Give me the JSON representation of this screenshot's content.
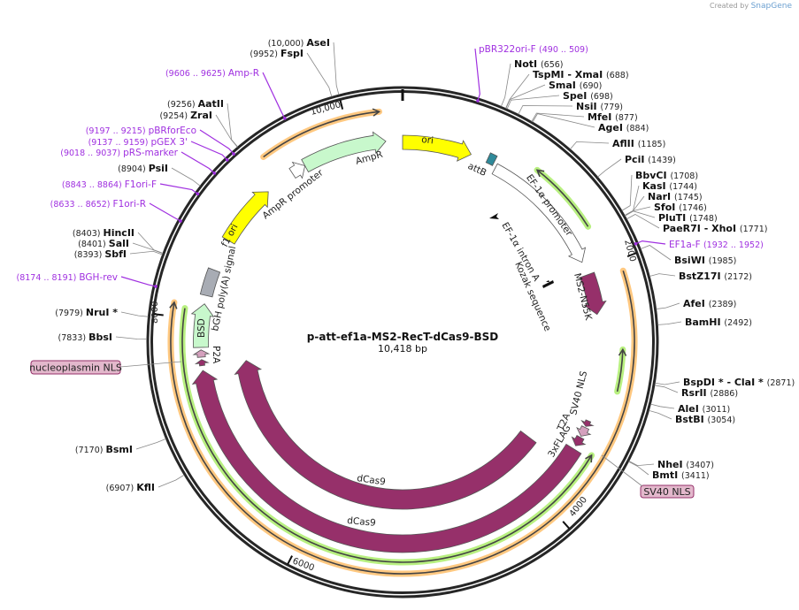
{
  "credit": {
    "prefix": "Created by",
    "brand": "SnapGene"
  },
  "plasmid": {
    "name": "p-att-ef1a-MS2-RecT-dCas9-BSD",
    "length_label": "10,418 bp",
    "length": 10418
  },
  "ticks": [
    {
      "bp": 2000,
      "label": "2000"
    },
    {
      "bp": 4000,
      "label": "4000"
    },
    {
      "bp": 6000,
      "label": "6000"
    },
    {
      "bp": 8000,
      "label": "8000"
    },
    {
      "bp": 10000,
      "label": "10,000"
    }
  ],
  "sites": [
    {
      "name": "AseI",
      "pos": "(10,000)",
      "bp": 10000
    },
    {
      "name": "FspI",
      "pos": "(9952)",
      "bp": 9952
    },
    {
      "name": "AatII",
      "pos": "(9256)",
      "bp": 9256
    },
    {
      "name": "ZraI",
      "pos": "(9254)",
      "bp": 9254
    },
    {
      "name": "PsiI",
      "pos": "(8904)",
      "bp": 8904
    },
    {
      "name": "HincII",
      "pos": "(8403)",
      "bp": 8403
    },
    {
      "name": "SalI",
      "pos": "(8401)",
      "bp": 8401
    },
    {
      "name": "SbfI",
      "pos": "(8393)",
      "bp": 8393
    },
    {
      "name": "NruI *",
      "pos": "(7979)",
      "bp": 7979
    },
    {
      "name": "BbsI",
      "pos": "(7833)",
      "bp": 7833
    },
    {
      "name": "BsmI",
      "pos": "(7170)",
      "bp": 7170
    },
    {
      "name": "KflI",
      "pos": "(6907)",
      "bp": 6907
    },
    {
      "name": "NotI",
      "pos": "(656)",
      "bp": 656
    },
    {
      "name": "TspMI  - XmaI",
      "pos": "(688)",
      "bp": 688
    },
    {
      "name": "SmaI",
      "pos": "(690)",
      "bp": 690
    },
    {
      "name": "SpeI",
      "pos": "(698)",
      "bp": 698
    },
    {
      "name": "NsiI",
      "pos": "(779)",
      "bp": 779
    },
    {
      "name": "MfeI",
      "pos": "(877)",
      "bp": 877
    },
    {
      "name": "AgeI",
      "pos": "(884)",
      "bp": 884
    },
    {
      "name": "AflII",
      "pos": "(1185)",
      "bp": 1185
    },
    {
      "name": "PciI",
      "pos": "(1439)",
      "bp": 1439
    },
    {
      "name": "BbvCI",
      "pos": "(1708)",
      "bp": 1708
    },
    {
      "name": "KasI",
      "pos": "(1744)",
      "bp": 1744
    },
    {
      "name": "NarI",
      "pos": "(1745)",
      "bp": 1745
    },
    {
      "name": "SfoI",
      "pos": "(1746)",
      "bp": 1746
    },
    {
      "name": "PluTI",
      "pos": "(1748)",
      "bp": 1748
    },
    {
      "name": "PaeR7I  - XhoI",
      "pos": "(1771)",
      "bp": 1771
    },
    {
      "name": "BsiWI",
      "pos": "(1985)",
      "bp": 1985
    },
    {
      "name": "BstZ17I",
      "pos": "(2172)",
      "bp": 2172
    },
    {
      "name": "AfeI",
      "pos": "(2389)",
      "bp": 2389
    },
    {
      "name": "BamHI",
      "pos": "(2492)",
      "bp": 2492
    },
    {
      "name": "BspDI *  - ClaI *",
      "pos": "(2871)",
      "bp": 2871
    },
    {
      "name": "RsrII",
      "pos": "(2886)",
      "bp": 2886
    },
    {
      "name": "AleI",
      "pos": "(3011)",
      "bp": 3011
    },
    {
      "name": "BstBI",
      "pos": "(3054)",
      "bp": 3054
    },
    {
      "name": "NheI",
      "pos": "(3407)",
      "bp": 3407
    },
    {
      "name": "BmtI",
      "pos": "(3411)",
      "bp": 3411
    }
  ],
  "primers": [
    {
      "name": "Amp-R",
      "pos": "(9606 .. 9625)",
      "bp": 9615
    },
    {
      "name": "pBRforEco",
      "pos": "(9197 .. 9215)",
      "bp": 9206
    },
    {
      "name": "pGEX 3'",
      "pos": "(9137 .. 9159)",
      "bp": 9148
    },
    {
      "name": "pRS-marker",
      "pos": "(9018 .. 9037)",
      "bp": 9027
    },
    {
      "name": "F1ori-F",
      "pos": "(8843 .. 8864)",
      "bp": 8853
    },
    {
      "name": "F1ori-R",
      "pos": "(8633 .. 8652)",
      "bp": 8642
    },
    {
      "name": "BGH-rev",
      "pos": "(8174 .. 8191)",
      "bp": 8182
    },
    {
      "name": "pBR322ori-F",
      "pos": "(490 .. 509)",
      "bp": 500
    },
    {
      "name": "EF1a-F",
      "pos": "(1932 .. 1952)",
      "bp": 1942
    }
  ],
  "features": [
    {
      "name": "ori",
      "start": 0,
      "end": 580,
      "dir": 1,
      "color": "#ffff00"
    },
    {
      "name": "attB",
      "start": 720,
      "end": 780,
      "dir": 0,
      "color": "#2f8a9a"
    },
    {
      "name": "EF-1α promoter",
      "start": 810,
      "end": 1910,
      "dir": 1,
      "color": "#ffffff"
    },
    {
      "name": "MS2-N55K",
      "start": 2025,
      "end": 2370,
      "dir": 1,
      "color": "#96306a"
    },
    {
      "name": "dCas9 (inner)",
      "start": 3675,
      "end": 7620,
      "dir": 1,
      "color": "#96306a"
    },
    {
      "name": "dCas9 (outer)",
      "start": 3530,
      "end": 7580,
      "dir": 1,
      "color": "#96306a"
    },
    {
      "name": "3xFLAG",
      "start": 3420,
      "end": 3500,
      "dir": 1,
      "color": "#96306a"
    },
    {
      "name": "T2A",
      "start": 3330,
      "end": 3410,
      "dir": 1,
      "color": "#d4a0bd"
    },
    {
      "name": "SV40 NLS",
      "start": 3270,
      "end": 3320,
      "dir": 1,
      "color": "#96306a"
    },
    {
      "name": "nucleoplasmin NLS",
      "start": 7620,
      "end": 7670,
      "dir": 1,
      "color": "#96306a"
    },
    {
      "name": "P2A",
      "start": 7690,
      "end": 7750,
      "dir": 1,
      "color": "#d4a0bd"
    },
    {
      "name": "BSD",
      "start": 7770,
      "end": 8130,
      "dir": 1,
      "color": "#c8f8cc"
    },
    {
      "name": "bGH poly(A) signal",
      "start": 8200,
      "end": 8420,
      "dir": 0,
      "color": "#a8acb4"
    },
    {
      "name": "f1 ori",
      "start": 8690,
      "end": 9210,
      "dir": 1,
      "color": "#ffff00"
    },
    {
      "name": "AmpR promoter",
      "start": 9460,
      "end": 9580,
      "dir": 1,
      "color": "#ffffff"
    },
    {
      "name": "AmpR",
      "start": 9580,
      "end": 10280,
      "dir": 1,
      "color": "#c8f8cc"
    }
  ],
  "orfs": [
    {
      "start": 9350,
      "end": 10250,
      "dir": 1,
      "color": "#ffc880"
    },
    {
      "start": 2085,
      "end": 8100,
      "dir": 1,
      "color": "#ffc880"
    },
    {
      "start": 1100,
      "end": 1680,
      "dir": -1,
      "color": "#b8f080"
    },
    {
      "start": 2660,
      "end": 2980,
      "dir": -1,
      "color": "#b8f080"
    },
    {
      "start": 3500,
      "end": 8070,
      "dir": -1,
      "color": "#b8f080"
    }
  ],
  "small_features": [
    {
      "name": "EF-1α intron A"
    },
    {
      "name": "Kozak sequence"
    }
  ],
  "boxed_labels": {
    "nucleoplasmin": "nucleoplasmin NLS",
    "sv40": "SV40 NLS"
  }
}
